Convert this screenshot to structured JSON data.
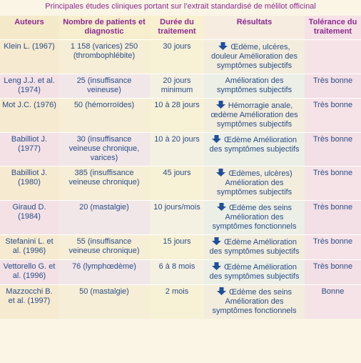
{
  "title": "Principales études cliniques portant sur l’extrait standardisé de mélilot officinal",
  "headers": {
    "auteurs": "Auteurs",
    "patients": "Nombre de patients et diagnostic",
    "duree": "Durée du traitement",
    "resultats": "Résultats",
    "tolerance": "Tolérance du traitement"
  },
  "rows": [
    {
      "auteurs": "Klein L. (1967)",
      "patients": "1 158 (varices) 250 (thrombophlébite)",
      "duree": "30 jours",
      "arrow": true,
      "resultats": "Œdème, ulcères, douleur Amélioration des symptômes subjectifs",
      "tolerance": ""
    },
    {
      "auteurs": "Leng J.J. et al. (1974)",
      "patients": "25 (insuffisance veineuse)",
      "duree": "20 jours minimum",
      "arrow": false,
      "resultats": "Amélioration des symptômes subjectifs",
      "tolerance": "Très bonne"
    },
    {
      "auteurs": "Mot J.C. (1976)",
      "patients": "50 (hémorroïdes)",
      "duree": "10 à 28 jours",
      "arrow": true,
      "resultats": "Hémorragie anale, œdème Amélioration des symptômes subjectifs",
      "tolerance": "Très bonne"
    },
    {
      "auteurs": "Babilliot J. (1977)",
      "patients": "30 (insuffisance veineuse chronique, varices)",
      "duree": "10 à 20 jours",
      "arrow": true,
      "resultats": "Œdème Amélioration des symptômes subjectifs",
      "tolerance": "Très bonne"
    },
    {
      "auteurs": "Babilliot J. (1980)",
      "patients": "385 (insuffisance veineuse chronique)",
      "duree": "45 jours",
      "arrow": true,
      "resultats": "Œdèmes, ulcères) Amélioration des symptômes subjectifs",
      "tolerance": "Très bonne"
    },
    {
      "auteurs": "Giraud D. (1984)",
      "patients": "20 (mastalgie)",
      "duree": "10 jours/mois",
      "arrow": true,
      "resultats": "Œdème des seins Amélioration des symptômes fonctionnels",
      "tolerance": "Très bonne"
    },
    {
      "auteurs": "Stefanini L. et al. (1996)",
      "patients": "55 (insuffisance veineuse chronique)",
      "duree": "15 jours",
      "arrow": true,
      "resultats": "Œdème Amélioration des symptômes subjectifs",
      "tolerance": "Très bonne"
    },
    {
      "auteurs": "Vettorello G. et al. (1996)",
      "patients": "76 (lymphœdème)",
      "duree": "6 à 8 mois",
      "arrow": true,
      "resultats": "Œdème Amélioration des symptômes subjectifs",
      "tolerance": "Très bonne"
    },
    {
      "auteurs": "Mazzocchi B. et al. (1997)",
      "patients": "50 (mastalgie)",
      "duree": "2 mois",
      "arrow": true,
      "resultats": "Œdème des seins Amélioration des symptômes fonctionnels",
      "tolerance": "Bonne"
    }
  ],
  "colors": {
    "title": "#8b2a8f",
    "text": "#2a4d87",
    "arrow": "#1f4f9a"
  },
  "icons": {
    "arrow": "down-arrow-icon"
  }
}
